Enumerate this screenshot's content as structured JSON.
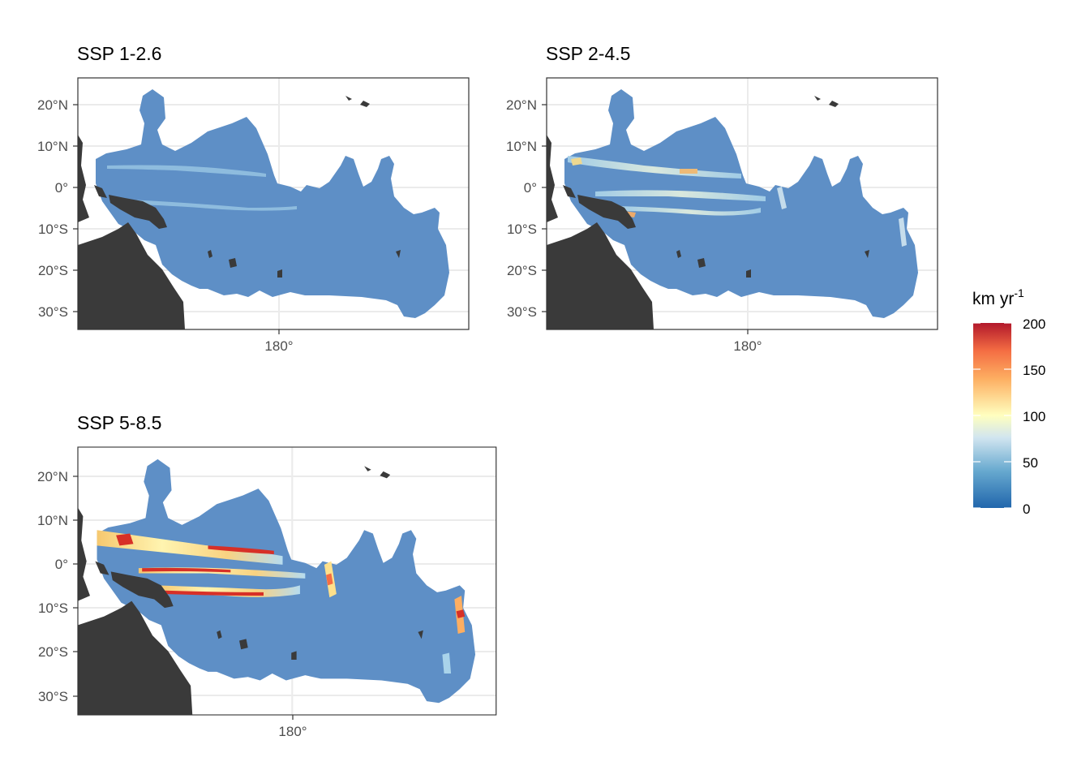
{
  "colors": {
    "background": "#ffffff",
    "gridline": "#ebebeb",
    "land": "#3a3a3a",
    "panel_border": "#333333",
    "ocean_low": "#5e8fc6",
    "colorscale": [
      "#2166ac",
      "#67a9cf",
      "#d1e5f0",
      "#ffffbf",
      "#fdae61",
      "#f46d43",
      "#d73027",
      "#b2182b"
    ]
  },
  "panels": [
    {
      "title": "SSP 1-2.6",
      "lat_ticks": [
        "20°N",
        "10°N",
        "0°",
        "10°S",
        "20°S",
        "30°S"
      ],
      "lon_ticks": [
        "180°"
      ]
    },
    {
      "title": "SSP 2-4.5",
      "lat_ticks": [
        "20°N",
        "10°N",
        "0°",
        "10°S",
        "20°S",
        "30°S"
      ],
      "lon_ticks": [
        "180°"
      ]
    },
    {
      "title": "SSP 5-8.5",
      "lat_ticks": [
        "20°N",
        "10°N",
        "0°",
        "10°S",
        "20°S",
        "30°S"
      ],
      "lon_ticks": [
        "180°"
      ]
    }
  ],
  "legend": {
    "title_main": "km yr",
    "title_sup": "-1",
    "ticks": [
      "200",
      "150",
      "100",
      "50",
      "0"
    ],
    "range": [
      0,
      200
    ]
  }
}
